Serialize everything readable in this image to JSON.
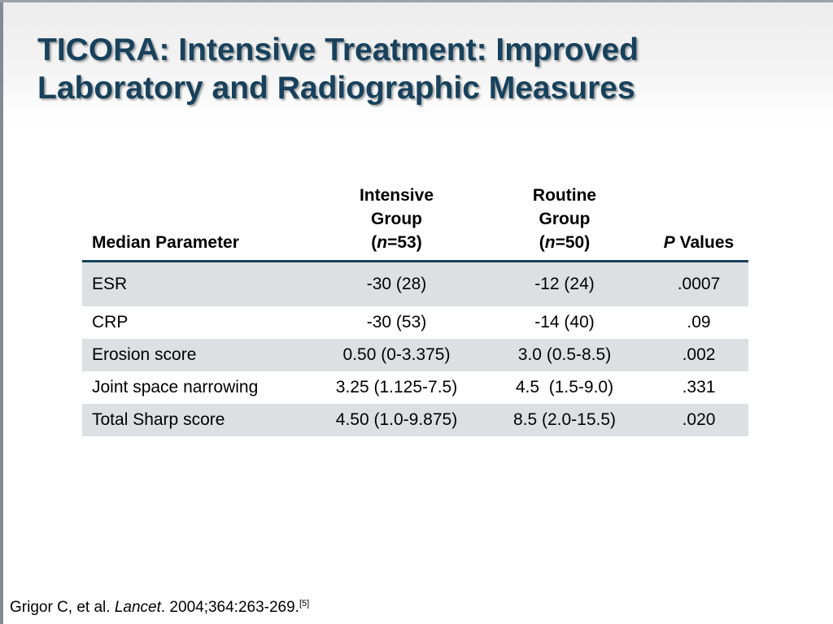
{
  "slide": {
    "title": "TICORA: Intensive Treatment: Improved Laboratory and Radiographic Measures"
  },
  "table": {
    "headers": {
      "parameter": "Median Parameter",
      "intensive": {
        "line1": "Intensive",
        "line2": "Group",
        "n_label": "n",
        "n_value": "=53"
      },
      "routine": {
        "line1": "Routine",
        "line2": "Group",
        "n_label": "n",
        "n_value": "=50"
      },
      "pvalues": {
        "italic": "P",
        "rest": " Values"
      }
    },
    "rows": [
      {
        "parameter": "ESR",
        "intensive": "-30 (28)",
        "routine": "-12 (24)",
        "p": ".0007"
      },
      {
        "parameter": "CRP",
        "intensive": "-30 (53)",
        "routine": "-14 (40)",
        "p": ".09"
      },
      {
        "parameter": "Erosion score",
        "intensive": "0.50 (0-3.375)",
        "routine": "3.0 (0.5-8.5)",
        "p": ".002"
      },
      {
        "parameter": "Joint space narrowing",
        "intensive": "3.25 (1.125-7.5)",
        "routine": "4.5  (1.5-9.0)",
        "p": ".331"
      },
      {
        "parameter": "Total Sharp score",
        "intensive": "4.50 (1.0-9.875)",
        "routine": "8.5 (2.0-15.5)",
        "p": ".020"
      }
    ]
  },
  "citation": {
    "authors": "Grigor C, et al. ",
    "journal": "Lancet",
    "details": ". 2004;364:263-269.",
    "ref": "[5]"
  },
  "colors": {
    "title": "#17415c",
    "header_rule": "#17415c",
    "row_shade": "#dde0e3"
  }
}
